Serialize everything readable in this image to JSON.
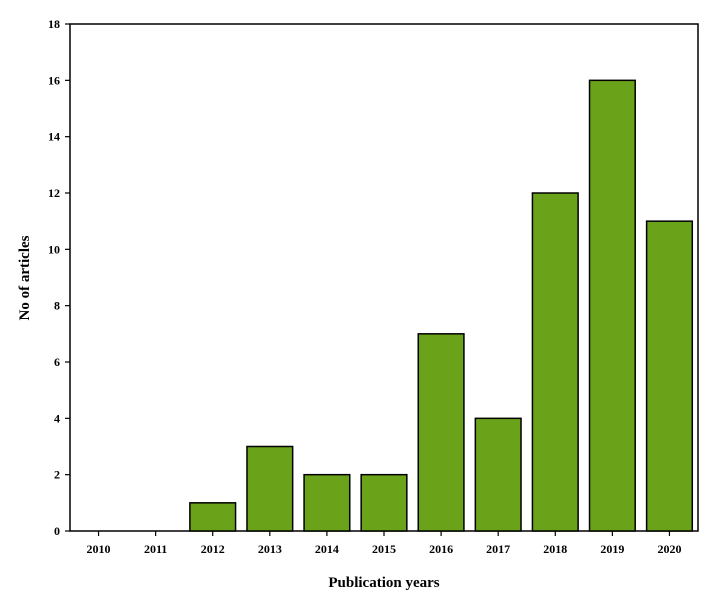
{
  "chart_data": {
    "type": "bar",
    "categories": [
      "2010",
      "2011",
      "2012",
      "2013",
      "2014",
      "2015",
      "2016",
      "2017",
      "2018",
      "2019",
      "2020"
    ],
    "values": [
      0,
      0,
      1,
      3,
      2,
      2,
      7,
      4,
      12,
      16,
      11
    ],
    "title": "",
    "xlabel": "Publication years",
    "ylabel": "No of articles",
    "ylim": [
      0,
      18
    ],
    "yticks": [
      0,
      2,
      4,
      6,
      8,
      10,
      12,
      14,
      16,
      18
    ],
    "grid": false,
    "legend": "none",
    "bar_color": "#6aa31a",
    "bar_edge_color": "#000000"
  }
}
